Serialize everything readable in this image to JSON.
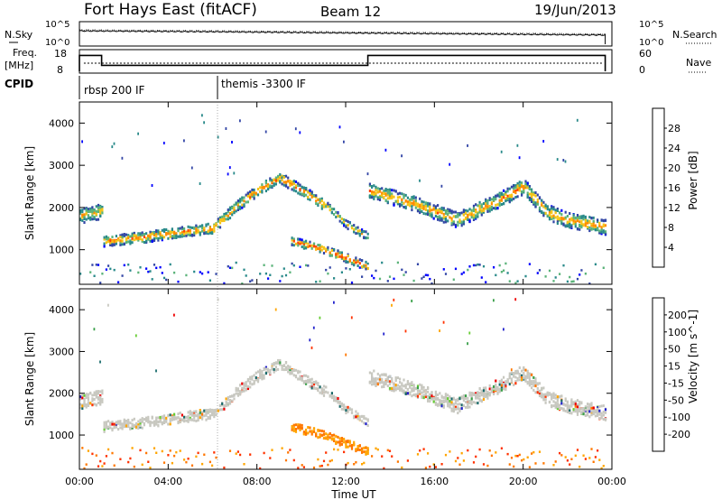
{
  "header": {
    "title": "Fort Hays East (fitACF)",
    "beam": "Beam 12",
    "date": "19/Jun/2013"
  },
  "labels": {
    "nsky": "N.Sky",
    "nsearch": "N.Search",
    "freq_line1": "Freq.",
    "freq_line2": "[MHz]",
    "nave": "Nave",
    "cpid": "CPID",
    "time_axis": "Time UT"
  },
  "cpid_segments": [
    {
      "label": "rbsp 200 IF",
      "start_hour": 0
    },
    {
      "label": "themis -3300 IF",
      "start_hour": 6
    }
  ],
  "colors": {
    "ground_scatter": "#c8c8c0",
    "power_scale": [
      "#0000ff",
      "#3346a6",
      "#2a8a8a",
      "#5bb37a",
      "#f5c518",
      "#ff8c00",
      "#ff4500",
      "#ff0000"
    ],
    "velocity_scale": [
      "#2222cc",
      "#1a6b6b",
      "#3aa04a",
      "#66cc33",
      "#c8c8c0",
      "#ffa500",
      "#ff7700",
      "#ff3300",
      "#ee0000"
    ]
  },
  "chart_data": [
    {
      "type": "line",
      "name": "noise",
      "ylabel": "N.Sky",
      "y2label": "N.Search",
      "yticks": [
        "10^5",
        "10^0"
      ],
      "y2ticks": [
        "10^5",
        "10^0"
      ],
      "series": [
        {
          "values": [
            3.2,
            3.0,
            2.7,
            2.2
          ]
        }
      ],
      "x": [
        0,
        6,
        12,
        23.7
      ]
    },
    {
      "type": "line",
      "name": "frequency",
      "ylabel": "Freq. [MHz]",
      "y2label": "Nave",
      "yticks": [
        18,
        8
      ],
      "y2ticks": [
        60,
        0
      ],
      "freq_steps": [
        {
          "from": 0,
          "to": 1,
          "value": 16
        },
        {
          "from": 1,
          "to": 13,
          "value": 11
        },
        {
          "from": 13,
          "to": 23.7,
          "value": 16
        }
      ],
      "nave_level": 30
    },
    {
      "type": "heatmap",
      "name": "power",
      "ylabel": "Slant Range [km]",
      "colorbar_label": "Power [dB]",
      "colorbar_ticks": [
        4,
        8,
        12,
        16,
        20,
        24,
        28
      ],
      "ylim": [
        180,
        4500
      ],
      "yticks": [
        1000,
        2000,
        3000,
        4000
      ],
      "xlim": [
        0,
        24
      ],
      "bands": [
        {
          "points": [
            [
              0,
              1800
            ],
            [
              1,
              1900
            ]
          ],
          "width": 350,
          "level": 0.5
        },
        {
          "points": [
            [
              1.05,
              1200
            ],
            [
              3,
              1300
            ],
            [
              5,
              1450
            ],
            [
              6,
              1500
            ],
            [
              7,
              2000
            ],
            [
              8,
              2400
            ],
            [
              9,
              2700
            ],
            [
              10,
              2400
            ],
            [
              11,
              2050
            ]
          ],
          "width": 250,
          "level": 0.65
        },
        {
          "points": [
            [
              11,
              2100
            ],
            [
              12,
              1600
            ],
            [
              13,
              1300
            ]
          ],
          "width": 180,
          "level": 0.5
        },
        {
          "points": [
            [
              9.5,
              1200
            ],
            [
              11,
              1000
            ],
            [
              12.5,
              700
            ],
            [
              13,
              600
            ]
          ],
          "width": 200,
          "level": 0.75
        },
        {
          "points": [
            [
              13,
              2400
            ],
            [
              15,
              2100
            ],
            [
              17,
              1700
            ],
            [
              19,
              2200
            ],
            [
              20,
              2500
            ],
            [
              21,
              1900
            ],
            [
              22,
              1700
            ],
            [
              24,
              1500
            ]
          ],
          "width": 350,
          "level": 0.6
        }
      ]
    },
    {
      "type": "heatmap",
      "name": "velocity",
      "ylabel": "Slant Range [km]",
      "colorbar_label": "Velocity [m s^-1]",
      "colorbar_ticks": [
        200,
        100,
        50,
        15,
        -15,
        -50,
        -100,
        -200
      ],
      "ylim": [
        180,
        4500
      ],
      "yticks": [
        1000,
        2000,
        3000,
        4000
      ],
      "xlim": [
        0,
        24
      ],
      "xticks": [
        "00:00",
        "04:00",
        "08:00",
        "12:00",
        "16:00",
        "20:00",
        "00:00"
      ]
    }
  ]
}
